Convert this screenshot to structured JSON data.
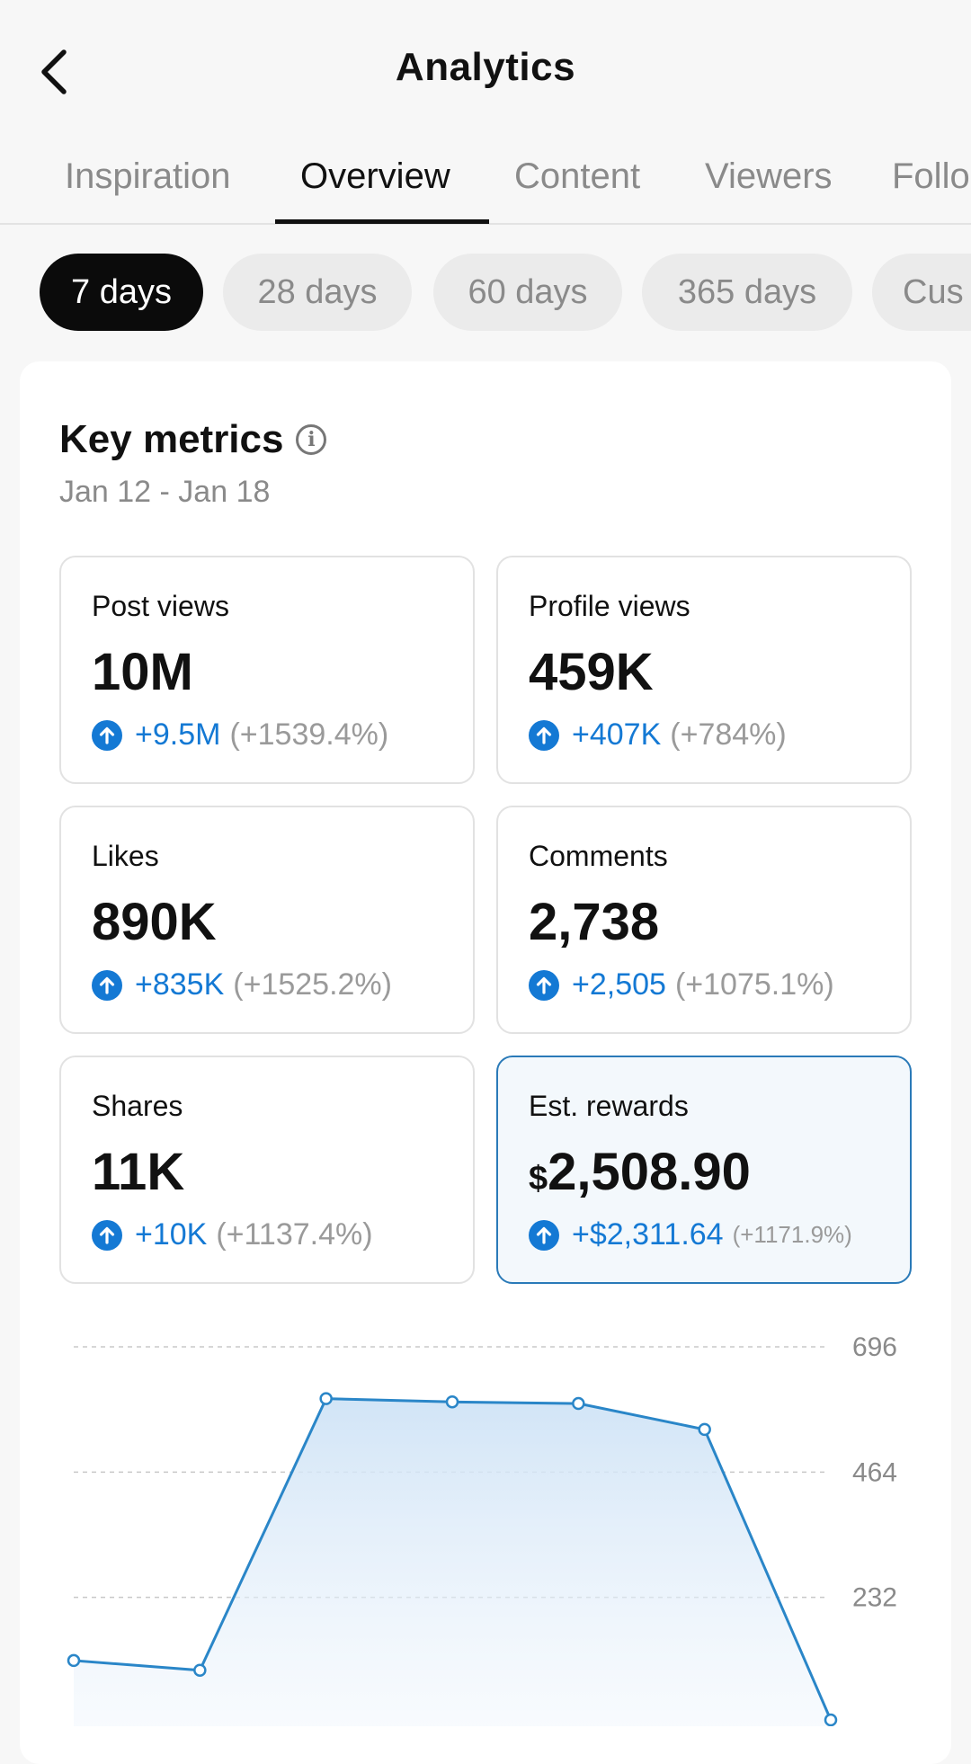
{
  "header": {
    "title": "Analytics"
  },
  "tabs": [
    {
      "label": "Inspiration",
      "active": false
    },
    {
      "label": "Overview",
      "active": true
    },
    {
      "label": "Content",
      "active": false
    },
    {
      "label": "Viewers",
      "active": false
    },
    {
      "label": "Follo",
      "active": false
    }
  ],
  "ranges": [
    {
      "label": "7 days",
      "active": true
    },
    {
      "label": "28 days",
      "active": false
    },
    {
      "label": "60 days",
      "active": false
    },
    {
      "label": "365 days",
      "active": false
    },
    {
      "label": "Cus",
      "active": false
    }
  ],
  "key_metrics": {
    "title": "Key metrics",
    "date_range": "Jan 12 - Jan 18",
    "cards": [
      {
        "label": "Post views",
        "value": "10M",
        "delta": "+9.5M",
        "pct": "(+1539.4%)"
      },
      {
        "label": "Profile views",
        "value": "459K",
        "delta": "+407K",
        "pct": "(+784%)"
      },
      {
        "label": "Likes",
        "value": "890K",
        "delta": "+835K",
        "pct": "(+1525.2%)"
      },
      {
        "label": "Comments",
        "value": "2,738",
        "delta": "+2,505",
        "pct": "(+1075.1%)"
      },
      {
        "label": "Shares",
        "value": "11K",
        "delta": "+10K",
        "pct": "(+1137.4%)"
      },
      {
        "label": "Est. rewards",
        "currency": "$",
        "value": "2,508.90",
        "delta": "+$2,311.64",
        "pct": "(+1171.9%)"
      }
    ]
  },
  "colors": {
    "accent": "#1479d4",
    "highlight_border": "#2a7ab8",
    "active_chip": "#0b0b0b"
  },
  "icons": {
    "back": "chevron-left-icon",
    "info": "info-icon",
    "up": "arrow-up-circle-icon"
  },
  "chart_data": {
    "type": "area",
    "y_ticks": [
      696,
      464,
      232
    ],
    "ylim": [
      0,
      696
    ],
    "x": [
      1,
      2,
      3,
      4,
      5,
      6,
      7
    ],
    "values": [
      115,
      97,
      600,
      594,
      591,
      543,
      5
    ],
    "grid": true
  }
}
